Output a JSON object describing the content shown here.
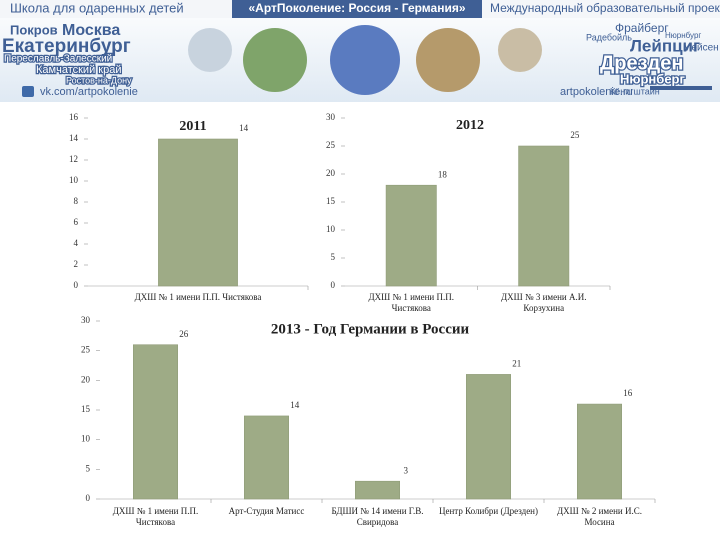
{
  "banner": {
    "left_title": "Школа для одаренных детей",
    "center_title": "«АртПоколение: Россия - Германия»",
    "right_title": "Международный образовательный проект",
    "left_cities": [
      "Покров",
      "Москва",
      "Екатеринбург",
      "Переславль-Залесский",
      "Камчатский край",
      "Ростов-на-Дону"
    ],
    "right_cities": [
      "Фрайберг",
      "Радебойль",
      "Нюрнбург",
      "Мейсен",
      "Лейпциг",
      "Дрезден",
      "Нюрнберг",
      "Кёнигштайн"
    ],
    "vk": "vk.com/artpokolenie",
    "site": "artpokolenie.ru"
  },
  "chart_data": [
    {
      "type": "bar",
      "title": "2011",
      "color": "#9eab86",
      "categories": [
        "ДХШ № 1 имени П.П. Чистякова"
      ],
      "values": [
        14
      ],
      "ylim": [
        0,
        16
      ],
      "yticks": [
        0,
        2,
        4,
        6,
        8,
        10,
        12,
        14,
        16
      ]
    },
    {
      "type": "bar",
      "title": "2012",
      "color": "#9eab86",
      "categories": [
        "ДХШ № 1 имени П.П. Чистякова",
        "ДХШ № 3 имени А.И. Корзухина"
      ],
      "values": [
        18,
        25
      ],
      "ylim": [
        0,
        30
      ],
      "yticks": [
        0,
        5,
        10,
        15,
        20,
        25,
        30
      ]
    },
    {
      "type": "bar",
      "title": "2013  - Год Германии в России",
      "color": "#9eab86",
      "categories": [
        "ДХШ № 1 имени П.П. Чистякова",
        "Арт-Студия Матисс",
        "БДШИ № 14 имени Г.В. Свиридова",
        "Центр Колибри (Дрезден)",
        "ДХШ № 2 имени И.С. Мосина"
      ],
      "values": [
        26,
        14,
        3,
        21,
        16
      ],
      "ylim": [
        0,
        30
      ],
      "yticks": [
        0,
        5,
        10,
        15,
        20,
        25,
        30
      ]
    }
  ]
}
